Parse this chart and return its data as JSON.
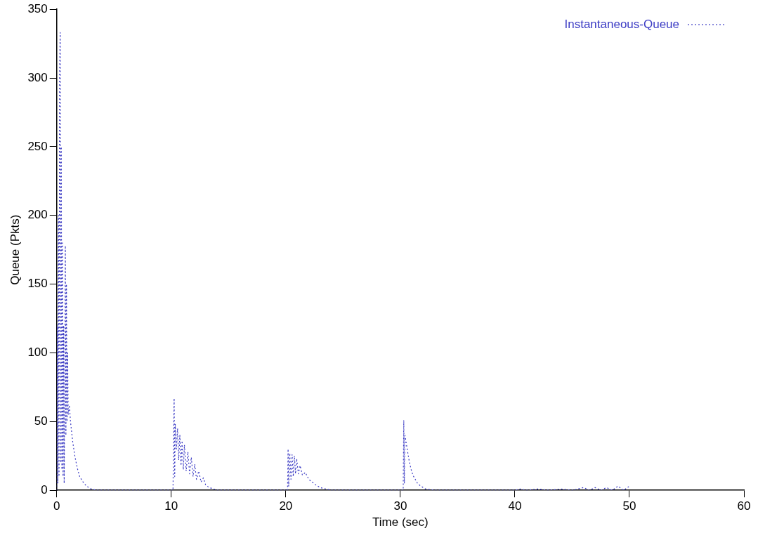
{
  "chart_data": {
    "type": "line",
    "xlabel": "Time (sec)",
    "ylabel": "Queue (Pkts)",
    "xlim": [
      0,
      60
    ],
    "ylim": [
      0,
      350
    ],
    "xticks": [
      0,
      10,
      20,
      30,
      40,
      50,
      60
    ],
    "yticks": [
      0,
      50,
      100,
      150,
      200,
      250,
      300,
      350
    ],
    "grid": false,
    "legend": "top right",
    "marker": "none",
    "line_style": "dotted",
    "series": [
      {
        "name": "Instantaneous-Queue",
        "color": "#3b3bc4",
        "x": [
          0,
          0.05,
          0.1,
          0.15,
          0.2,
          0.25,
          0.3,
          0.35,
          0.4,
          0.45,
          0.5,
          0.55,
          0.6,
          0.65,
          0.7,
          0.75,
          0.8,
          0.85,
          0.9,
          0.95,
          1.0,
          1.1,
          1.2,
          1.4,
          1.6,
          1.8,
          2.0,
          2.3,
          2.6,
          3.0,
          3.5,
          10,
          10.15,
          10.25,
          10.3,
          10.35,
          10.45,
          10.55,
          10.65,
          10.75,
          10.85,
          10.95,
          11.05,
          11.15,
          11.3,
          11.45,
          11.6,
          11.75,
          11.9,
          12.05,
          12.2,
          12.4,
          12.6,
          12.8,
          13.0,
          13.3,
          13.7,
          14,
          20,
          20.15,
          20.2,
          20.25,
          20.35,
          20.45,
          20.55,
          20.65,
          20.75,
          20.85,
          20.95,
          21.1,
          21.25,
          21.45,
          21.7,
          22,
          22.3,
          22.6,
          23,
          23.5,
          24,
          30,
          30.25,
          30.3,
          30.35,
          30.4,
          30.5,
          30.6,
          30.7,
          30.8,
          30.95,
          31.1,
          31.3,
          31.5,
          31.8,
          32.2,
          33,
          40,
          40.5,
          41,
          42,
          43,
          44,
          45,
          46,
          46.5,
          47,
          47.5,
          48,
          48.5,
          49,
          49.5,
          50
        ],
        "values": [
          0,
          120,
          5,
          200,
          10,
          300,
          333,
          20,
          250,
          15,
          180,
          10,
          120,
          5,
          80,
          178,
          40,
          150,
          50,
          100,
          55,
          62,
          50,
          35,
          24,
          16,
          10,
          6,
          3,
          1,
          0,
          0,
          0,
          67,
          10,
          48,
          30,
          45,
          22,
          40,
          18,
          36,
          15,
          33,
          14,
          28,
          12,
          24,
          10,
          19,
          8,
          14,
          6,
          9,
          4,
          2,
          1,
          0,
          0,
          0,
          30,
          3,
          27,
          8,
          26,
          10,
          25,
          12,
          23,
          12,
          18,
          11,
          13,
          8,
          6,
          4,
          2,
          1,
          0,
          0,
          0,
          51,
          5,
          40,
          35,
          30,
          25,
          20,
          15,
          11,
          8,
          5,
          3,
          1,
          0,
          0,
          1,
          0,
          1,
          0,
          1,
          0,
          2,
          0,
          2,
          0,
          2,
          0,
          3,
          0,
          3
        ]
      }
    ]
  }
}
